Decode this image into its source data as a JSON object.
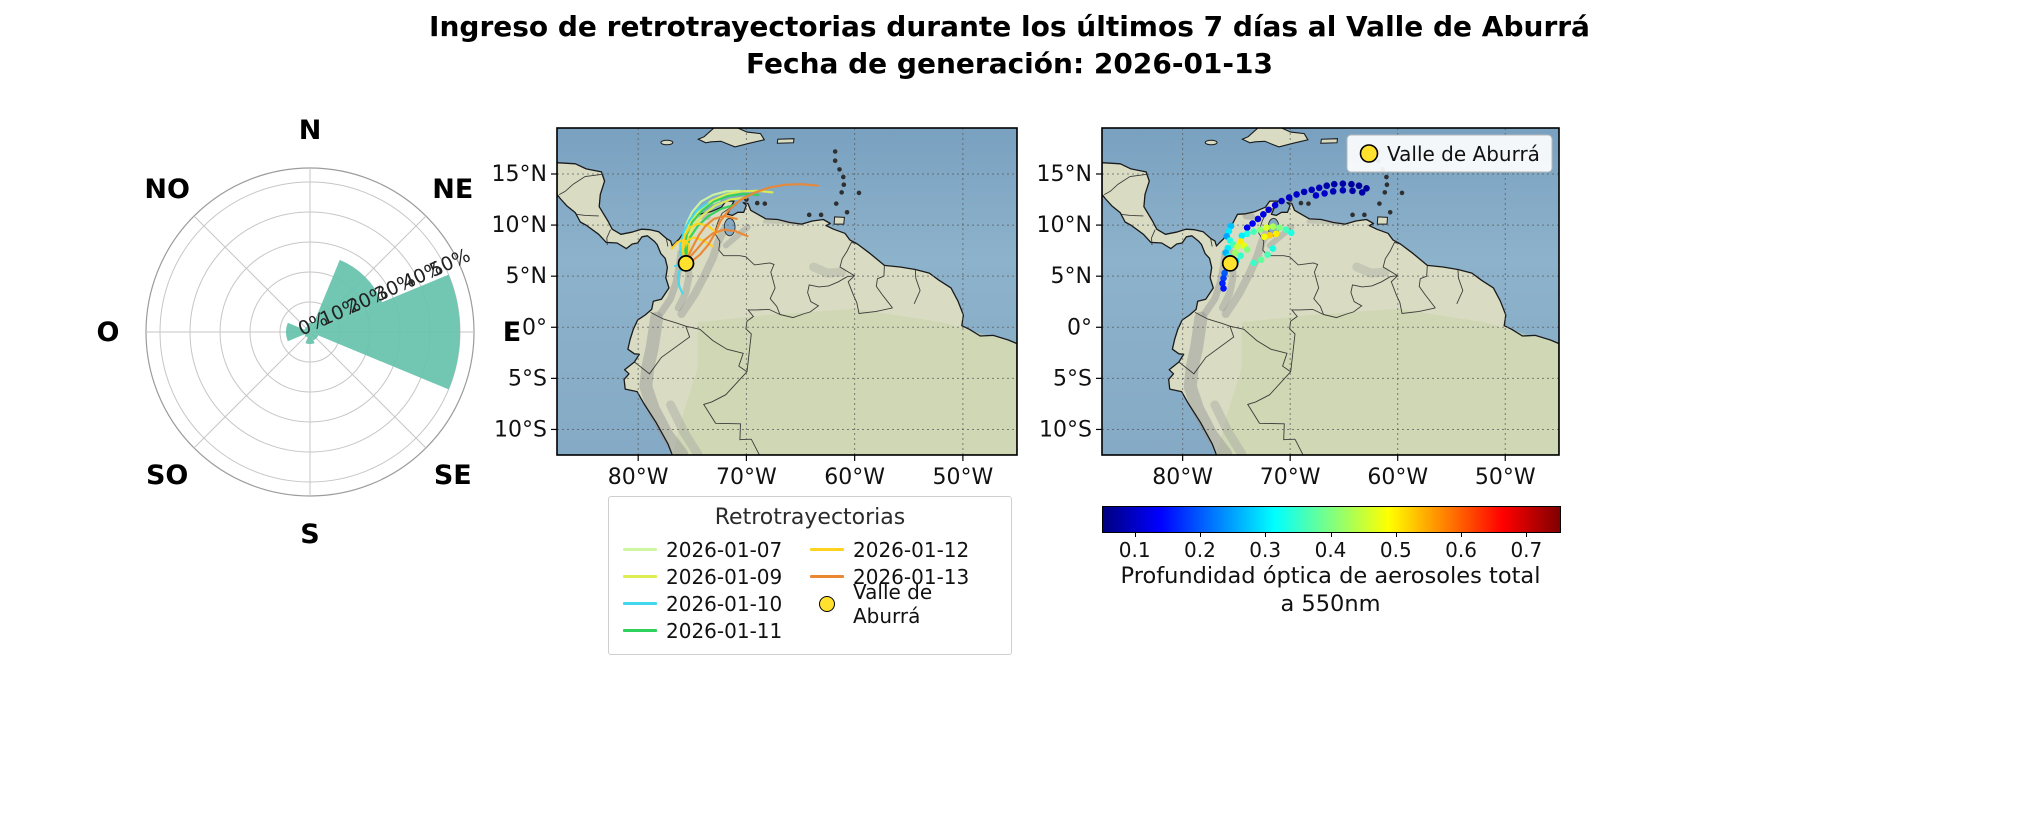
{
  "title": {
    "line1": "Ingreso de retrotrayectorias durante los últimos 7 días al Valle de Aburrá",
    "line2": "Fecha de generación: 2026-01-13"
  },
  "map_axes": {
    "extent": {
      "lon_min": -87.5,
      "lon_max": -45.0,
      "lat_min": -12.5,
      "lat_max": 19.5
    },
    "xtick_lons": [
      -80,
      -70,
      -60,
      -50
    ],
    "xtick_labels": [
      "80°W",
      "70°W",
      "60°W",
      "50°W"
    ],
    "ytick_lats": [
      15,
      10,
      5,
      0,
      -5,
      -10
    ],
    "ytick_labels": [
      "15°N",
      "10°N",
      "5°N",
      "0°",
      "5°S",
      "10°S"
    ]
  },
  "station": {
    "label": "Valle de Aburrá",
    "lon": -75.58,
    "lat": 6.25,
    "color": "#ffe12e"
  },
  "legend": {
    "title": "Retrotrayectorias"
  },
  "colorbar": {
    "colormap": "jet",
    "vmin": 0.05,
    "vmax": 0.75,
    "tick_values": [
      0.1,
      0.2,
      0.3,
      0.4,
      0.5,
      0.6,
      0.7
    ],
    "tick_labels": [
      "0.1",
      "0.2",
      "0.3",
      "0.4",
      "0.5",
      "0.6",
      "0.7"
    ],
    "label_line1": "Profundidad óptica de aerosoles total",
    "label_line2": "a 550nm"
  },
  "chart_data": [
    {
      "type": "windrose",
      "directions": [
        "N",
        "NE",
        "E",
        "SE",
        "S",
        "SO",
        "O",
        "NO"
      ],
      "values_pct": [
        3,
        26,
        50,
        3,
        4,
        2,
        8,
        2
      ],
      "r_ticks_pct": [
        0,
        10,
        20,
        30,
        40,
        50
      ],
      "r_tick_labels": [
        "0%",
        "10%",
        "20%",
        "30%",
        "40%",
        "50%"
      ],
      "petal_color": "#66c2ad",
      "rmax_pct": 50
    },
    {
      "type": "line",
      "subtype": "trajectory-map",
      "series": [
        {
          "name": "2026-01-07",
          "color": "#cff6a0",
          "paths": [
            [
              [
                -70.6,
                13.35
              ],
              [
                -71.9,
                13.3
              ],
              [
                -73.1,
                12.95
              ],
              [
                -74.2,
                12.3
              ],
              [
                -75.0,
                11.3
              ],
              [
                -75.5,
                10.2
              ],
              [
                -75.8,
                9.0
              ],
              [
                -75.8,
                7.8
              ],
              [
                -75.7,
                6.9
              ],
              [
                -75.58,
                6.25
              ]
            ],
            [
              [
                -72.5,
                12.4
              ],
              [
                -73.7,
                11.9
              ],
              [
                -74.7,
                11.1
              ],
              [
                -75.3,
                10.0
              ],
              [
                -75.6,
                8.9
              ],
              [
                -75.7,
                7.8
              ],
              [
                -75.58,
                6.25
              ]
            ]
          ]
        },
        {
          "name": "2026-01-09",
          "color": "#dded52",
          "paths": [
            [
              [
                -67.6,
                13.2
              ],
              [
                -69.0,
                13.35
              ],
              [
                -70.5,
                13.3
              ],
              [
                -71.9,
                13.0
              ],
              [
                -73.2,
                12.4
              ],
              [
                -74.3,
                11.5
              ],
              [
                -75.1,
                10.4
              ],
              [
                -75.6,
                9.2
              ],
              [
                -75.8,
                8.0
              ],
              [
                -75.7,
                7.0
              ],
              [
                -75.58,
                6.25
              ]
            ],
            [
              [
                -70.0,
                12.7
              ],
              [
                -71.5,
                12.5
              ],
              [
                -72.9,
                11.9
              ],
              [
                -74.0,
                11.0
              ],
              [
                -74.9,
                9.9
              ],
              [
                -75.4,
                8.7
              ],
              [
                -75.6,
                7.5
              ],
              [
                -75.58,
                6.25
              ]
            ]
          ]
        },
        {
          "name": "2026-01-10",
          "color": "#41d7ee",
          "paths": [
            [
              [
                -73.6,
                12.15
              ],
              [
                -74.6,
                11.4
              ],
              [
                -75.3,
                10.4
              ],
              [
                -75.8,
                9.3
              ],
              [
                -76.1,
                8.1
              ],
              [
                -76.1,
                7.1
              ],
              [
                -75.58,
                6.25
              ]
            ],
            [
              [
                -75.9,
                3.3
              ],
              [
                -76.2,
                4.0
              ],
              [
                -76.3,
                4.8
              ],
              [
                -76.2,
                5.5
              ],
              [
                -75.9,
                5.9
              ],
              [
                -75.58,
                6.25
              ]
            ],
            [
              [
                -76.6,
                6.0
              ],
              [
                -76.2,
                6.1
              ],
              [
                -75.58,
                6.25
              ]
            ]
          ]
        },
        {
          "name": "2026-01-11",
          "color": "#2fd05c",
          "paths": [
            [
              [
                -68.9,
                12.95
              ],
              [
                -70.3,
                13.05
              ],
              [
                -71.7,
                12.85
              ],
              [
                -73.0,
                12.3
              ],
              [
                -74.1,
                11.4
              ],
              [
                -75.0,
                10.3
              ],
              [
                -75.5,
                9.1
              ],
              [
                -75.7,
                7.9
              ],
              [
                -75.58,
                6.25
              ]
            ],
            [
              [
                -71.0,
                12.0
              ],
              [
                -72.3,
                11.6
              ],
              [
                -73.5,
                10.9
              ],
              [
                -74.5,
                9.9
              ],
              [
                -75.2,
                8.8
              ],
              [
                -75.5,
                7.7
              ],
              [
                -75.58,
                6.25
              ]
            ]
          ]
        },
        {
          "name": "2026-01-12",
          "color": "#ffd21f",
          "paths": [
            [
              [
                -72.7,
                9.2
              ],
              [
                -73.5,
                9.9
              ],
              [
                -74.4,
                10.15
              ],
              [
                -75.2,
                9.8
              ],
              [
                -75.7,
                9.0
              ],
              [
                -75.9,
                8.0
              ],
              [
                -75.8,
                7.0
              ],
              [
                -75.58,
                6.25
              ]
            ],
            [
              [
                -73.1,
                7.9
              ],
              [
                -74.0,
                8.5
              ],
              [
                -74.9,
                8.8
              ],
              [
                -75.6,
                8.4
              ],
              [
                -75.9,
                7.5
              ],
              [
                -75.58,
                6.25
              ]
            ],
            [
              [
                -76.9,
                7.7
              ],
              [
                -76.4,
                8.3
              ],
              [
                -75.8,
                8.55
              ],
              [
                -75.3,
                8.1
              ],
              [
                -75.3,
                7.2
              ],
              [
                -75.58,
                6.25
              ]
            ]
          ]
        },
        {
          "name": "2026-01-13",
          "color": "#eb8633",
          "paths": [
            [
              [
                -63.4,
                13.85
              ],
              [
                -64.9,
                14.0
              ],
              [
                -66.4,
                13.95
              ],
              [
                -67.8,
                13.7
              ],
              [
                -69.2,
                13.2
              ],
              [
                -70.5,
                12.5
              ],
              [
                -71.6,
                11.5
              ],
              [
                -72.4,
                10.4
              ],
              [
                -72.9,
                9.2
              ],
              [
                -73.5,
                8.1
              ],
              [
                -74.3,
                7.1
              ],
              [
                -75.0,
                6.5
              ],
              [
                -75.58,
                6.25
              ]
            ],
            [
              [
                -69.9,
                8.9
              ],
              [
                -71.0,
                9.4
              ],
              [
                -72.1,
                9.55
              ],
              [
                -73.1,
                9.2
              ],
              [
                -73.9,
                8.5
              ],
              [
                -74.6,
                7.6
              ],
              [
                -75.2,
                6.9
              ],
              [
                -75.58,
                6.25
              ]
            ],
            [
              [
                -70.9,
                10.6
              ],
              [
                -72.0,
                10.9
              ],
              [
                -73.0,
                10.6
              ],
              [
                -73.8,
                9.9
              ],
              [
                -74.4,
                9.0
              ],
              [
                -74.9,
                8.0
              ],
              [
                -75.3,
                7.1
              ],
              [
                -75.58,
                6.25
              ]
            ]
          ]
        }
      ]
    },
    {
      "type": "scatter",
      "subtype": "aod-map",
      "value_label": "AOD 550nm",
      "points": [
        [
          -62.9,
          13.6,
          0.07
        ],
        [
          -63.6,
          13.85,
          0.07
        ],
        [
          -64.3,
          14.0,
          0.07
        ],
        [
          -65.1,
          14.05,
          0.08
        ],
        [
          -65.9,
          14.0,
          0.08
        ],
        [
          -66.6,
          13.85,
          0.08
        ],
        [
          -67.3,
          13.65,
          0.09
        ],
        [
          -68.0,
          13.45,
          0.09
        ],
        [
          -68.7,
          13.25,
          0.09
        ],
        [
          -69.4,
          13.0,
          0.1
        ],
        [
          -70.1,
          12.7,
          0.1
        ],
        [
          -70.8,
          12.35,
          0.1
        ],
        [
          -71.4,
          11.95,
          0.11
        ],
        [
          -72.0,
          11.5,
          0.11
        ],
        [
          -72.5,
          11.05,
          0.12
        ],
        [
          -73.0,
          10.6,
          0.12
        ],
        [
          -73.5,
          10.15,
          0.13
        ],
        [
          -74.0,
          9.75,
          0.13
        ],
        [
          -63.3,
          13.2,
          0.08
        ],
        [
          -64.2,
          13.35,
          0.08
        ],
        [
          -65.1,
          13.4,
          0.09
        ],
        [
          -66.0,
          13.3,
          0.09
        ],
        [
          -66.8,
          13.1,
          0.1
        ],
        [
          -67.6,
          12.9,
          0.1
        ],
        [
          -69.9,
          9.25,
          0.33
        ],
        [
          -70.4,
          9.55,
          0.36
        ],
        [
          -71.0,
          9.75,
          0.4
        ],
        [
          -71.6,
          9.85,
          0.43
        ],
        [
          -72.2,
          9.75,
          0.46
        ],
        [
          -72.8,
          9.55,
          0.41
        ],
        [
          -73.4,
          9.35,
          0.36
        ],
        [
          -74.0,
          9.15,
          0.33
        ],
        [
          -74.5,
          8.95,
          0.3
        ],
        [
          -71.3,
          9.15,
          0.5
        ],
        [
          -71.9,
          9.0,
          0.52
        ],
        [
          -72.4,
          8.85,
          0.48
        ],
        [
          -75.5,
          9.9,
          0.27
        ],
        [
          -75.7,
          9.4,
          0.3
        ],
        [
          -75.9,
          8.9,
          0.25
        ],
        [
          -75.6,
          8.5,
          0.33
        ],
        [
          -75.3,
          8.1,
          0.36
        ],
        [
          -75.8,
          7.75,
          0.3
        ],
        [
          -76.0,
          7.3,
          0.26
        ],
        [
          -75.7,
          6.9,
          0.32
        ],
        [
          -75.4,
          6.6,
          0.38
        ],
        [
          -75.1,
          7.3,
          0.42
        ],
        [
          -74.9,
          7.9,
          0.45
        ],
        [
          -74.6,
          8.4,
          0.5
        ],
        [
          -74.3,
          8.0,
          0.47
        ],
        [
          -74.0,
          7.6,
          0.4
        ],
        [
          -74.6,
          7.0,
          0.35
        ],
        [
          -75.0,
          6.5,
          0.3
        ],
        [
          -75.9,
          5.8,
          0.22
        ],
        [
          -76.1,
          5.3,
          0.2
        ],
        [
          -76.2,
          4.8,
          0.18
        ],
        [
          -76.3,
          4.3,
          0.16
        ],
        [
          -76.2,
          3.8,
          0.15
        ],
        [
          -73.4,
          6.3,
          0.35
        ],
        [
          -72.7,
          6.6,
          0.38
        ],
        [
          -72.1,
          7.1,
          0.36
        ],
        [
          -71.6,
          7.7,
          0.33
        ]
      ]
    }
  ]
}
